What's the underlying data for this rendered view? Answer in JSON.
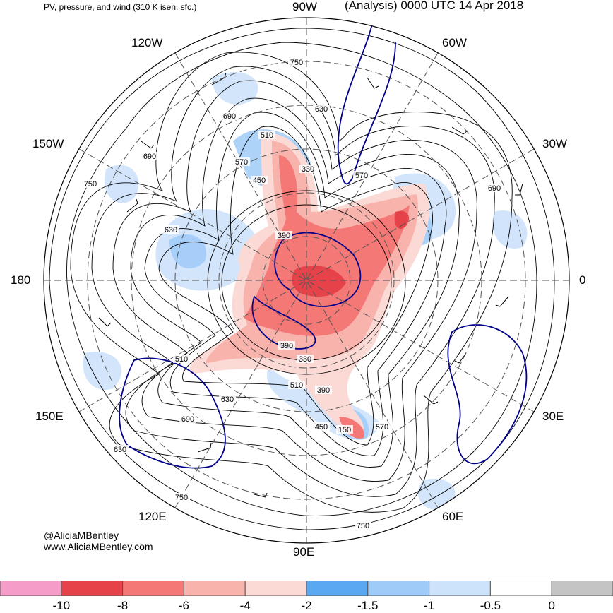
{
  "header": {
    "subtitle": "PV, pressure, and wind (310 K isen. sfc.)",
    "title": "(Analysis) 0000 UTC 14 Apr 2018"
  },
  "longitude_labels": {
    "lon_90w": "90W",
    "lon_60w": "60W",
    "lon_120w": "120W",
    "lon_30w": "30W",
    "lon_150w": "150W",
    "lon_180": "180",
    "lon_0": "0",
    "lon_150e": "150E",
    "lon_30e": "30E",
    "lon_120e": "120E",
    "lon_60e": "60E",
    "lon_90e": "90E"
  },
  "contour_labels": [
    "750",
    "630",
    "690",
    "510",
    "330",
    "570",
    "450",
    "750",
    "690",
    "630",
    "390",
    "570",
    "390",
    "510",
    "330",
    "510",
    "390",
    "630",
    "450",
    "690",
    "570",
    "750",
    "750",
    "690",
    "630",
    "150"
  ],
  "credits": {
    "handle": "@AliciaMBentley",
    "site": "www.AliciaMBentley.com"
  },
  "colorbar": {
    "colors": [
      "#f59cc8",
      "#e5424a",
      "#f47876",
      "#f9b3ad",
      "#fbdad6",
      "#5aa8f2",
      "#9fcbf8",
      "#cde2fb",
      "#ffffff",
      "#c4c4c4"
    ],
    "ticks": [
      "-10",
      "-8",
      "-6",
      "-4",
      "-2",
      "-1.5",
      "-1",
      "-0.5",
      "0"
    ]
  },
  "map_colors": {
    "positive_pv": "#f47876",
    "negative_pv": "#9fcbf8",
    "coastline": "#00008b",
    "contour": "#000000"
  }
}
